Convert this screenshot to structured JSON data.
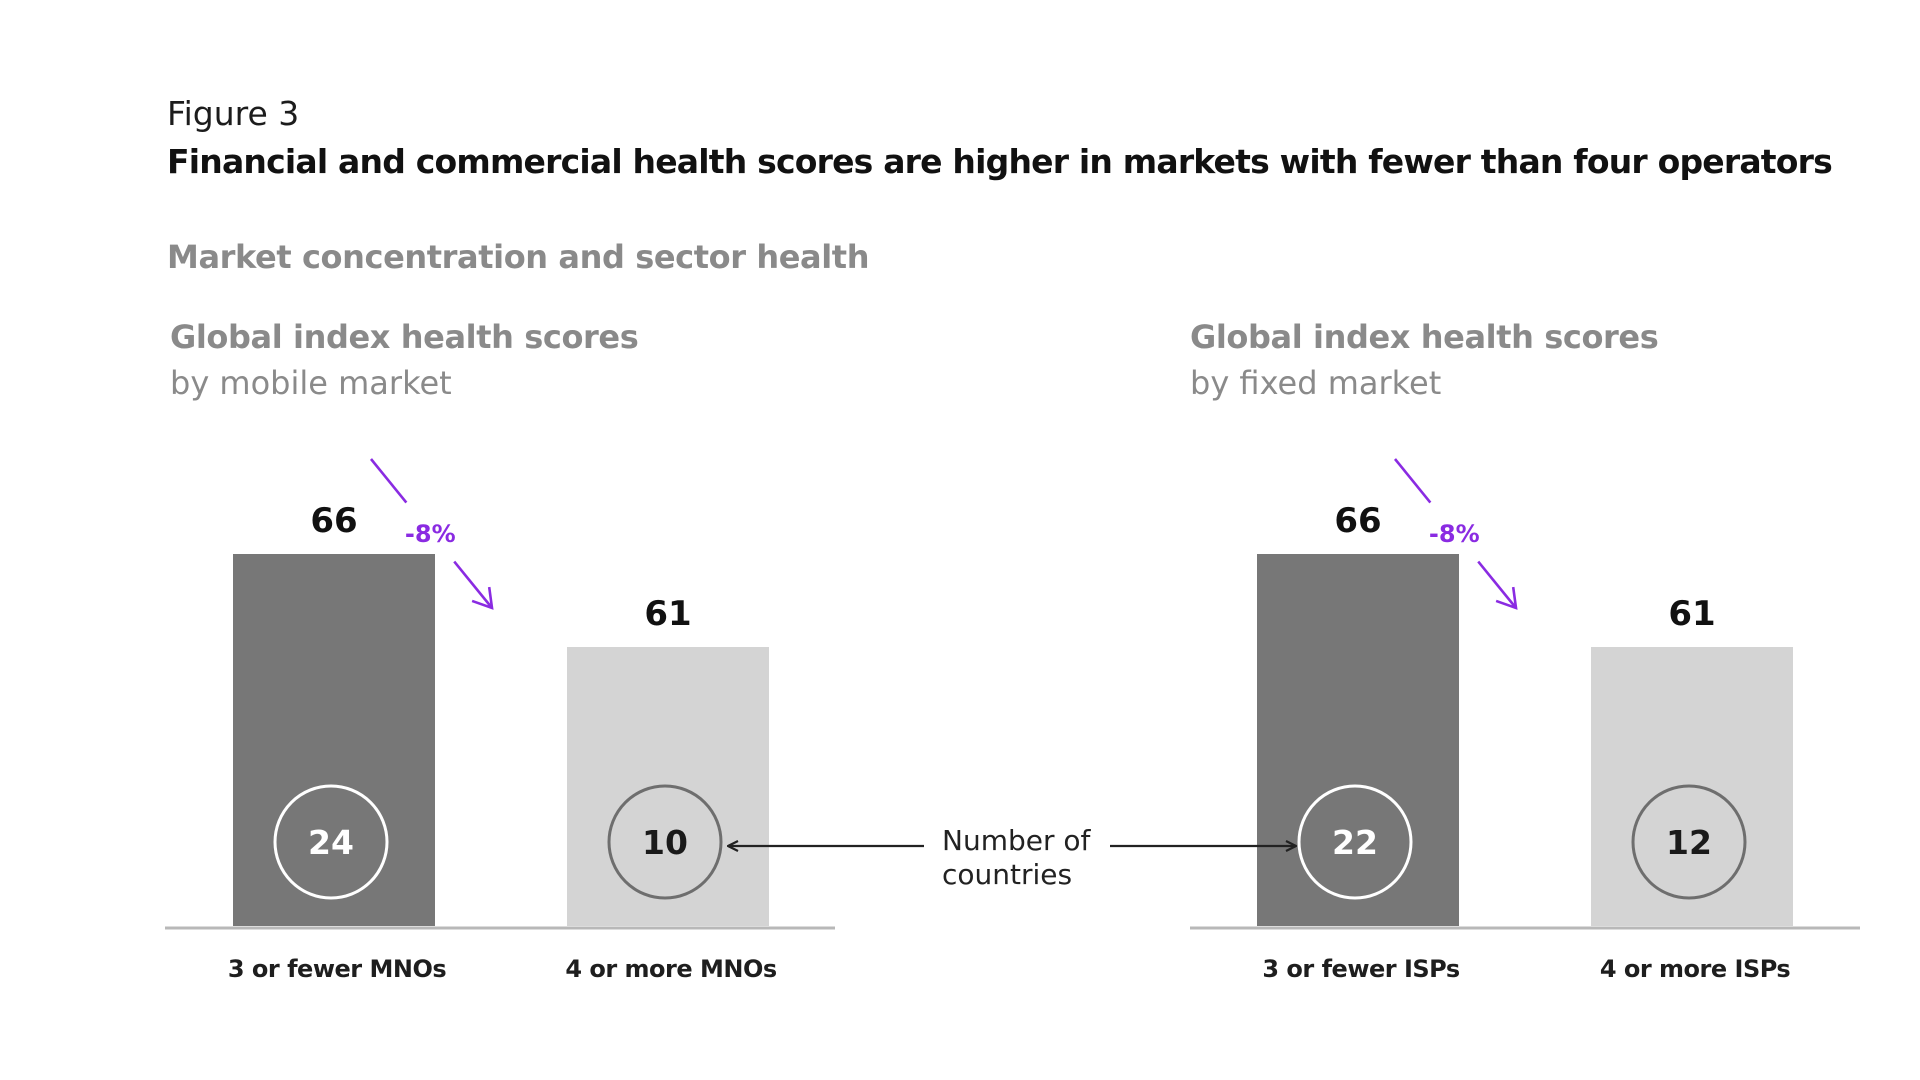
{
  "figure": {
    "label": "Figure 3",
    "title": "Financial and commercial health scores are higher in markets with fewer than four operators",
    "section_title": "Market concentration and sector health"
  },
  "colors": {
    "dark_bar": "#777777",
    "light_bar": "#d4d4d4",
    "axis": "#b8b8b8",
    "accent": "#8a2be2",
    "text": "#111111",
    "muted": "#8a8a8a"
  },
  "annotation": {
    "line1": "Number of",
    "line2": "countries"
  },
  "chart_data": [
    {
      "type": "bar",
      "title": "Global index health scores",
      "subtitle": "by mobile market",
      "categories": [
        "3 or fewer MNOs",
        "4 or more MNOs"
      ],
      "values": [
        66,
        61
      ],
      "countries": [
        24,
        10
      ],
      "change_label": "-8%",
      "ylim": [
        0,
        66
      ],
      "grid": false
    },
    {
      "type": "bar",
      "title": "Global index health scores",
      "subtitle": "by fixed market",
      "categories": [
        "3 or fewer ISPs",
        "4 or more ISPs"
      ],
      "values": [
        66,
        61
      ],
      "countries": [
        22,
        12
      ],
      "change_label": "-8%",
      "ylim": [
        0,
        66
      ],
      "grid": false
    }
  ]
}
